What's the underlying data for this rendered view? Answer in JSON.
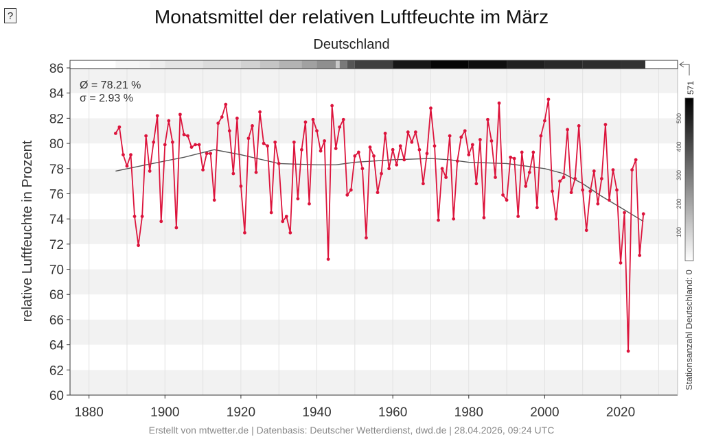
{
  "help_button_label": "?",
  "footer": "Erstellt von mtwetter.de | Datenbasis: Deutscher Wetterdienst, dwd.de | 28.04.2026, 09:24 UTC",
  "stats": {
    "mean": "Ø = 78.21 %",
    "sigma": "σ = 2.93 %"
  },
  "station_count": {
    "label": "Stationsanzahl Deutschland: 0",
    "max_label": "571",
    "tick_labels": [
      "100",
      "200",
      "300",
      "400",
      "500"
    ],
    "tick_values": [
      100,
      200,
      300,
      400,
      500
    ],
    "max": 571,
    "approx_counts": [
      [
        1887,
        1893,
        20
      ],
      [
        1893,
        1896,
        25
      ],
      [
        1896,
        1900,
        40
      ],
      [
        1900,
        1910,
        60
      ],
      [
        1910,
        1920,
        80
      ],
      [
        1920,
        1925,
        100
      ],
      [
        1925,
        1930,
        130
      ],
      [
        1930,
        1936,
        170
      ],
      [
        1936,
        1940,
        210
      ],
      [
        1940,
        1945,
        250
      ],
      [
        1945,
        1946,
        120
      ],
      [
        1946,
        1948,
        300
      ],
      [
        1948,
        1950,
        380
      ],
      [
        1950,
        1960,
        430
      ],
      [
        1960,
        1970,
        520
      ],
      [
        1970,
        1980,
        560
      ],
      [
        1980,
        1990,
        540
      ],
      [
        1990,
        2000,
        500
      ],
      [
        2000,
        2010,
        480
      ],
      [
        2010,
        2020,
        470
      ],
      [
        2020,
        2026.5,
        460
      ]
    ]
  },
  "chart_data": {
    "type": "line",
    "title": "Monatsmittel der relativen Luftfeuchte im März",
    "subtitle": "Deutschland",
    "xlabel": "",
    "ylabel": "relative Luftfeuchte in Prozent",
    "xlim": [
      1875,
      2035
    ],
    "ylim": [
      60,
      86
    ],
    "xticks": [
      1880,
      1900,
      1920,
      1940,
      1960,
      1980,
      2000,
      2020
    ],
    "yticks": [
      60,
      62,
      64,
      66,
      68,
      70,
      72,
      74,
      76,
      78,
      80,
      82,
      84,
      86
    ],
    "grid": true,
    "colors": {
      "series": "#dc143c",
      "trend": "#555555"
    },
    "series": [
      {
        "x": [
          1887,
          1888,
          1889,
          1890,
          1891,
          1892,
          1893,
          1894,
          1895,
          1896,
          1897,
          1898,
          1899,
          1900,
          1901,
          1902,
          1903,
          1904,
          1905,
          1906,
          1907,
          1908,
          1909,
          1910,
          1911,
          1912,
          1913,
          1914,
          1915,
          1916,
          1917,
          1918,
          1919,
          1920,
          1921,
          1922,
          1923,
          1924,
          1925,
          1926,
          1927,
          1928,
          1929,
          1930,
          1931,
          1932,
          1933,
          1934,
          1935,
          1936,
          1937,
          1938,
          1939,
          1940,
          1941,
          1942,
          1943,
          1944,
          1945,
          1946,
          1947,
          1948,
          1949,
          1950,
          1951,
          1952,
          1953,
          1954,
          1955,
          1956,
          1957,
          1958,
          1959,
          1960,
          1961,
          1962,
          1963,
          1964,
          1965,
          1966,
          1967,
          1968,
          1969,
          1970,
          1971,
          1972,
          1973,
          1974,
          1975,
          1976,
          1977,
          1978,
          1979,
          1980,
          1981,
          1982,
          1983,
          1984,
          1985,
          1986,
          1987,
          1988,
          1989,
          1990,
          1991,
          1992,
          1993,
          1994,
          1995,
          1996,
          1997,
          1998,
          1999,
          2000,
          2001,
          2002,
          2003,
          2004,
          2005,
          2006,
          2007,
          2008,
          2009,
          2010,
          2011,
          2012,
          2013,
          2014,
          2015,
          2016,
          2017,
          2018,
          2019,
          2020,
          2021,
          2022,
          2023,
          2024,
          2025,
          2026
        ],
        "values": [
          80.8,
          81.3,
          79.1,
          78.2,
          79.1,
          74.2,
          71.9,
          74.2,
          80.6,
          77.8,
          80.1,
          82.2,
          73.8,
          79.9,
          81.8,
          80.1,
          73.3,
          82.3,
          80.7,
          80.6,
          79.7,
          79.9,
          79.9,
          77.9,
          79.2,
          79.2,
          75.5,
          81.6,
          82.1,
          83.1,
          81.0,
          77.6,
          82.0,
          76.6,
          72.9,
          80.4,
          81.4,
          77.7,
          82.5,
          80.0,
          79.8,
          74.5,
          80.1,
          78.4,
          73.8,
          74.2,
          72.9,
          80.1,
          75.6,
          79.5,
          81.7,
          75.2,
          81.9,
          81.0,
          79.4,
          80.2,
          70.8,
          83.0,
          79.6,
          81.3,
          81.9,
          75.9,
          76.3,
          79.0,
          79.3,
          78.0,
          72.5,
          79.7,
          79.0,
          76.1,
          77.6,
          80.8,
          78.0,
          79.5,
          78.3,
          79.8,
          78.7,
          80.9,
          80.1,
          80.9,
          79.5,
          76.8,
          79.2,
          82.8,
          79.8,
          73.9,
          78.0,
          77.3,
          80.6,
          74.0,
          78.6,
          80.5,
          81.0,
          79.1,
          79.9,
          76.8,
          80.3,
          74.1,
          81.9,
          80.2,
          77.3,
          83.2,
          75.9,
          75.5,
          78.9,
          78.8,
          74.2,
          79.3,
          76.6,
          77.7,
          79.3,
          74.9,
          80.6,
          81.8,
          83.5,
          76.2,
          74.0,
          77.0,
          77.3,
          81.1,
          76.1,
          77.2,
          81.4,
          76.3,
          73.1,
          76.2,
          77.8,
          75.2,
          77.2,
          81.5,
          75.5,
          77.9,
          76.3,
          70.5,
          74.5,
          63.5,
          77.9,
          78.7,
          71.1,
          74.4
        ]
      },
      {
        "trend": true,
        "x": [
          1887,
          1895,
          1905,
          1913,
          1920,
          1930,
          1940,
          1945,
          1950,
          1960,
          1970,
          1975,
          1980,
          1990,
          2000,
          2005,
          2010,
          2015,
          2020,
          2026
        ],
        "values": [
          77.8,
          78.3,
          78.9,
          79.5,
          79.1,
          78.4,
          78.3,
          78.3,
          78.5,
          78.7,
          78.8,
          78.7,
          78.5,
          78.4,
          78.0,
          77.6,
          76.8,
          75.8,
          74.9,
          73.8
        ]
      }
    ]
  }
}
